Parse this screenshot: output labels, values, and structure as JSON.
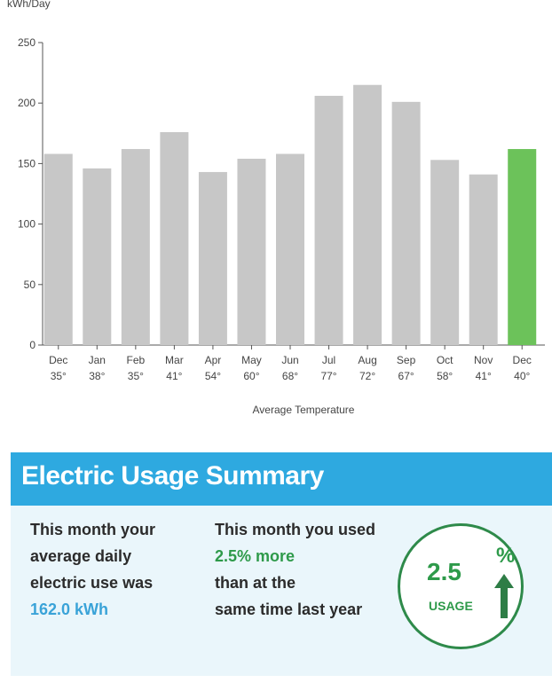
{
  "chart_data": {
    "type": "bar",
    "ylabel": "kWh/Day",
    "xlabel": "Average Temperature",
    "ylim": [
      0,
      250
    ],
    "yticks": [
      0,
      50,
      100,
      150,
      200,
      250
    ],
    "categories": [
      "Dec",
      "Jan",
      "Feb",
      "Mar",
      "Apr",
      "May",
      "Jun",
      "Jul",
      "Aug",
      "Sep",
      "Oct",
      "Nov",
      "Dec"
    ],
    "temperatures": [
      "35°",
      "38°",
      "35°",
      "41°",
      "54°",
      "60°",
      "68°",
      "77°",
      "72°",
      "67°",
      "58°",
      "41°",
      "40°"
    ],
    "values": [
      158,
      146,
      162,
      176,
      143,
      154,
      158,
      206,
      215,
      201,
      153,
      141,
      162
    ],
    "highlight_index": 12,
    "colors": {
      "bar": "#c7c7c7",
      "highlight": "#6cc25a",
      "axis": "#555555"
    }
  },
  "summary": {
    "title": "Electric Usage Summary",
    "col1": [
      "This month your",
      "average daily",
      "electric use was"
    ],
    "col1_value": "162.0 kWh",
    "col2_line1": "This month you used",
    "col2_highlight": "2.5% more",
    "col2_rest": [
      "than at the",
      "same time last year"
    ],
    "badge_value": "2.5",
    "badge_percent": "%",
    "badge_label": "USAGE",
    "colors": {
      "header": "#2ea9e0",
      "blue": "#3aa3d8",
      "green": "#2e9a4a"
    },
    "arrow_icon": "up-arrow-icon"
  }
}
